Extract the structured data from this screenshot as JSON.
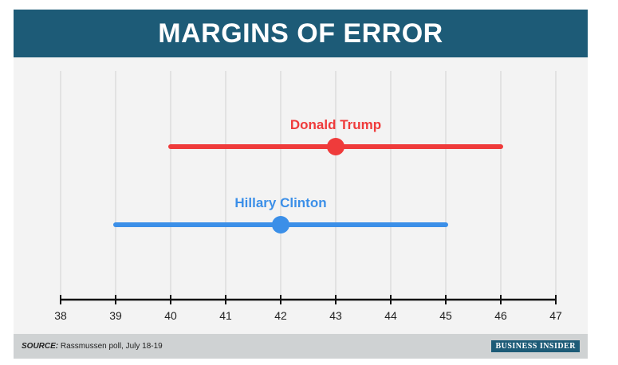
{
  "header": {
    "title": "MARGINS OF ERROR"
  },
  "footer": {
    "source_label": "SOURCE:",
    "source_text": "Rassmussen poll, July 18-19",
    "logo": "BUSINESS INSIDER"
  },
  "colors": {
    "header_bg": "#1d5b77",
    "trump": "#ef3b3b",
    "clinton": "#3b8fe8"
  },
  "chart_data": {
    "type": "errorbar",
    "title": "MARGINS OF ERROR",
    "xlabel": "",
    "ylabel": "",
    "xlim": [
      38,
      47
    ],
    "xticks": [
      38,
      39,
      40,
      41,
      42,
      43,
      44,
      45,
      46,
      47
    ],
    "grid": "vertical",
    "series": [
      {
        "name": "Donald Trump",
        "point": 43,
        "low": 40,
        "high": 46,
        "color": "#ef3b3b"
      },
      {
        "name": "Hillary Clinton",
        "point": 42,
        "low": 39,
        "high": 45,
        "color": "#3b8fe8"
      }
    ]
  }
}
